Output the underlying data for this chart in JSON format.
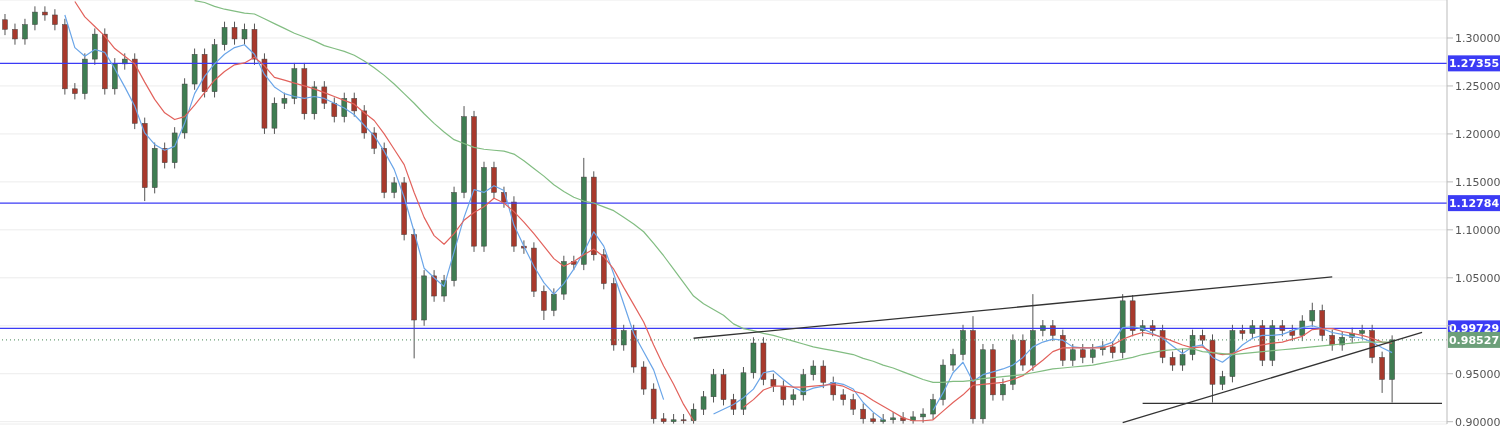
{
  "chart_data": {
    "type": "candlestick",
    "categories": [
      null,
      null,
      null,
      null,
      null,
      null,
      null,
      null,
      null,
      null,
      null,
      null,
      null,
      null,
      null,
      null,
      null,
      null,
      null,
      null,
      null,
      null,
      null,
      null,
      null,
      null,
      null,
      null,
      null,
      null,
      null,
      null,
      null,
      null,
      null,
      null,
      null,
      null,
      null,
      null,
      null,
      null,
      null,
      null,
      null,
      null,
      null,
      null,
      null,
      null,
      null,
      null,
      null,
      null,
      null,
      null,
      null,
      null,
      null,
      null,
      null,
      null,
      null,
      null,
      null,
      null,
      null,
      null,
      null,
      null,
      null,
      null,
      null,
      null,
      null,
      null,
      null,
      null,
      null,
      null,
      null,
      null,
      null,
      null,
      null,
      null,
      null,
      null,
      null,
      null,
      null,
      null,
      null,
      null,
      null,
      null,
      null,
      null,
      null,
      null,
      null,
      null,
      null,
      null,
      null,
      null,
      null,
      null,
      null,
      null,
      null,
      null,
      null,
      null,
      null,
      null,
      null,
      null,
      null,
      null,
      null,
      null,
      null,
      null,
      null,
      null,
      null,
      null,
      null,
      null,
      null,
      null,
      null,
      null,
      null,
      null,
      null,
      null,
      null,
      null,
      null,
      null,
      null,
      null,
      null
    ],
    "ohlc": [
      [
        1.319,
        1.325,
        1.303,
        1.309
      ],
      [
        1.309,
        1.315,
        1.293,
        1.299
      ],
      [
        1.299,
        1.32,
        1.293,
        1.314
      ],
      [
        1.314,
        1.333,
        1.308,
        1.327
      ],
      [
        1.327,
        1.333,
        1.318,
        1.324
      ],
      [
        1.324,
        1.33,
        1.308,
        1.314
      ],
      [
        1.314,
        1.32,
        1.241,
        1.247
      ],
      [
        1.247,
        1.253,
        1.236,
        1.242
      ],
      [
        1.242,
        1.284,
        1.236,
        1.278
      ],
      [
        1.278,
        1.31,
        1.272,
        1.304
      ],
      [
        1.304,
        1.31,
        1.241,
        1.247
      ],
      [
        1.247,
        1.279,
        1.241,
        1.273
      ],
      [
        1.273,
        1.284,
        1.267,
        1.278
      ],
      [
        1.278,
        1.284,
        1.205,
        1.211
      ],
      [
        1.211,
        1.217,
        1.13,
        1.144
      ],
      [
        1.144,
        1.191,
        1.138,
        1.185
      ],
      [
        1.185,
        1.191,
        1.164,
        1.17
      ],
      [
        1.17,
        1.207,
        1.164,
        1.201
      ],
      [
        1.201,
        1.258,
        1.195,
        1.252
      ],
      [
        1.252,
        1.289,
        1.246,
        1.283
      ],
      [
        1.283,
        1.289,
        1.238,
        1.244
      ],
      [
        1.244,
        1.299,
        1.238,
        1.293
      ],
      [
        1.293,
        1.317,
        1.287,
        1.311
      ],
      [
        1.311,
        1.317,
        1.293,
        1.299
      ],
      [
        1.299,
        1.315,
        1.293,
        1.309
      ],
      [
        1.309,
        1.315,
        1.272,
        1.278
      ],
      [
        1.278,
        1.284,
        1.2,
        1.206
      ],
      [
        1.206,
        1.238,
        1.2,
        1.232
      ],
      [
        1.232,
        1.243,
        1.226,
        1.237
      ],
      [
        1.237,
        1.274,
        1.231,
        1.268
      ],
      [
        1.268,
        1.274,
        1.215,
        1.221
      ],
      [
        1.221,
        1.255,
        1.215,
        1.249
      ],
      [
        1.249,
        1.255,
        1.226,
        1.232
      ],
      [
        1.232,
        1.238,
        1.212,
        1.218
      ],
      [
        1.218,
        1.243,
        1.212,
        1.237
      ],
      [
        1.237,
        1.243,
        1.218,
        1.224
      ],
      [
        1.224,
        1.23,
        1.195,
        1.201
      ],
      [
        1.201,
        1.207,
        1.179,
        1.185
      ],
      [
        1.185,
        1.191,
        1.133,
        1.139
      ],
      [
        1.139,
        1.155,
        1.133,
        1.149
      ],
      [
        1.149,
        1.155,
        1.089,
        1.095
      ],
      [
        1.095,
        1.101,
        0.966,
        1.006
      ],
      [
        1.006,
        1.058,
        1.0,
        1.052
      ],
      [
        1.052,
        1.058,
        1.025,
        1.031
      ],
      [
        1.031,
        1.053,
        1.025,
        1.047
      ],
      [
        1.047,
        1.145,
        1.041,
        1.139
      ],
      [
        1.139,
        1.229,
        1.133,
        1.218
      ],
      [
        1.218,
        1.224,
        1.077,
        1.083
      ],
      [
        1.083,
        1.171,
        1.077,
        1.165
      ],
      [
        1.165,
        1.171,
        1.133,
        1.139
      ],
      [
        1.139,
        1.145,
        1.123,
        1.129
      ],
      [
        1.129,
        1.135,
        1.077,
        1.083
      ],
      [
        1.083,
        1.089,
        1.075,
        1.081
      ],
      [
        1.081,
        1.087,
        1.03,
        1.036
      ],
      [
        1.036,
        1.042,
        1.006,
        1.016
      ],
      [
        1.016,
        1.039,
        1.01,
        1.033
      ],
      [
        1.033,
        1.073,
        1.027,
        1.067
      ],
      [
        1.067,
        1.073,
        1.058,
        1.064
      ],
      [
        1.064,
        1.175,
        1.058,
        1.155
      ],
      [
        1.155,
        1.161,
        1.068,
        1.074
      ],
      [
        1.074,
        1.08,
        1.038,
        1.044
      ],
      [
        1.044,
        1.05,
        0.974,
        0.98
      ],
      [
        0.98,
        1.001,
        0.974,
        0.995
      ],
      [
        0.995,
        1.001,
        0.951,
        0.957
      ],
      [
        0.957,
        0.963,
        0.928,
        0.934
      ],
      [
        0.934,
        0.94,
        0.898,
        0.903
      ],
      [
        0.903,
        0.909,
        0.898,
        0.9
      ],
      [
        0.9,
        0.908,
        0.898,
        0.902
      ],
      [
        0.902,
        0.908,
        0.898,
        0.901
      ],
      [
        0.901,
        0.919,
        0.898,
        0.913
      ],
      [
        0.913,
        0.932,
        0.907,
        0.926
      ],
      [
        0.926,
        0.955,
        0.92,
        0.949
      ],
      [
        0.949,
        0.955,
        0.917,
        0.923
      ],
      [
        0.923,
        0.929,
        0.907,
        0.913
      ],
      [
        0.913,
        0.957,
        0.907,
        0.951
      ],
      [
        0.951,
        0.988,
        0.945,
        0.982
      ],
      [
        0.982,
        0.988,
        0.938,
        0.944
      ],
      [
        0.944,
        0.95,
        0.931,
        0.937
      ],
      [
        0.937,
        0.943,
        0.917,
        0.923
      ],
      [
        0.923,
        0.934,
        0.917,
        0.928
      ],
      [
        0.928,
        0.955,
        0.922,
        0.949
      ],
      [
        0.949,
        0.964,
        0.943,
        0.958
      ],
      [
        0.958,
        0.964,
        0.935,
        0.941
      ],
      [
        0.941,
        0.947,
        0.922,
        0.928
      ],
      [
        0.928,
        0.934,
        0.917,
        0.923
      ],
      [
        0.923,
        0.929,
        0.907,
        0.913
      ],
      [
        0.913,
        0.919,
        0.898,
        0.903
      ],
      [
        0.903,
        0.909,
        0.898,
        0.9
      ],
      [
        0.9,
        0.908,
        0.898,
        0.902
      ],
      [
        0.902,
        0.91,
        0.898,
        0.904
      ],
      [
        0.904,
        0.91,
        0.898,
        0.901
      ],
      [
        0.901,
        0.911,
        0.898,
        0.905
      ],
      [
        0.905,
        0.914,
        0.899,
        0.908
      ],
      [
        0.908,
        0.929,
        0.902,
        0.923
      ],
      [
        0.923,
        0.965,
        0.917,
        0.959
      ],
      [
        0.959,
        0.976,
        0.953,
        0.97
      ],
      [
        0.97,
        1.001,
        0.964,
        0.995
      ],
      [
        0.995,
        1.01,
        0.898,
        0.903
      ],
      [
        0.903,
        0.981,
        0.898,
        0.975
      ],
      [
        0.975,
        0.981,
        0.922,
        0.928
      ],
      [
        0.928,
        0.945,
        0.922,
        0.939
      ],
      [
        0.939,
        0.991,
        0.933,
        0.985
      ],
      [
        0.985,
        0.991,
        0.953,
        0.959
      ],
      [
        0.959,
        1.033,
        0.953,
        0.995
      ],
      [
        0.995,
        1.006,
        0.989,
        1.0
      ],
      [
        1.0,
        1.006,
        0.984,
        0.99
      ],
      [
        0.99,
        0.996,
        0.958,
        0.964
      ],
      [
        0.964,
        0.981,
        0.958,
        0.975
      ],
      [
        0.975,
        0.981,
        0.961,
        0.967
      ],
      [
        0.967,
        0.981,
        0.961,
        0.975
      ],
      [
        0.975,
        0.984,
        0.969,
        0.978
      ],
      [
        0.978,
        0.984,
        0.966,
        0.972
      ],
      [
        0.972,
        1.033,
        0.966,
        1.026
      ],
      [
        1.026,
        1.032,
        0.989,
        0.995
      ],
      [
        0.995,
        1.006,
        0.989,
        1.0
      ],
      [
        1.0,
        1.006,
        0.989,
        0.995
      ],
      [
        0.995,
        1.001,
        0.961,
        0.967
      ],
      [
        0.967,
        0.973,
        0.953,
        0.959
      ],
      [
        0.959,
        0.976,
        0.953,
        0.97
      ],
      [
        0.97,
        0.996,
        0.964,
        0.99
      ],
      [
        0.99,
        0.996,
        0.979,
        0.985
      ],
      [
        0.985,
        0.991,
        0.92,
        0.939
      ],
      [
        0.939,
        0.953,
        0.933,
        0.947
      ],
      [
        0.947,
        1.001,
        0.941,
        0.995
      ],
      [
        0.995,
        1.001,
        0.986,
        0.992
      ],
      [
        0.992,
        1.006,
        0.986,
        1.0
      ],
      [
        1.0,
        1.006,
        0.958,
        0.964
      ],
      [
        0.964,
        1.006,
        0.958,
        1.0
      ],
      [
        1.0,
        1.006,
        0.989,
        0.995
      ],
      [
        0.995,
        1.001,
        0.984,
        0.99
      ],
      [
        0.99,
        1.011,
        0.984,
        1.005
      ],
      [
        1.005,
        1.024,
        0.999,
        1.016
      ],
      [
        1.016,
        1.022,
        0.984,
        0.99
      ],
      [
        0.99,
        0.996,
        0.974,
        0.98
      ],
      [
        0.98,
        0.994,
        0.974,
        0.988
      ],
      [
        0.988,
        0.998,
        0.982,
        0.992
      ],
      [
        0.992,
        1.001,
        0.986,
        0.995
      ],
      [
        0.995,
        1.001,
        0.961,
        0.967
      ],
      [
        0.967,
        0.973,
        0.93,
        0.944
      ],
      [
        0.944,
        0.99,
        0.92,
        0.98527
      ],
      null,
      null,
      null,
      null,
      null
    ],
    "series": [
      {
        "type": "line",
        "color": "#6aa5e8",
        "values": [
          null,
          null,
          null,
          null,
          null,
          null,
          1.324,
          1.29,
          1.281,
          1.288,
          1.285,
          1.268,
          1.249,
          1.229,
          1.201,
          1.189,
          1.183,
          1.187,
          1.211,
          1.242,
          1.26,
          1.273,
          1.283,
          1.29,
          1.293,
          1.283,
          1.262,
          1.249,
          1.242,
          1.239,
          1.237,
          1.239,
          1.237,
          1.232,
          1.227,
          1.22,
          1.209,
          1.198,
          1.182,
          1.163,
          1.134,
          1.098,
          1.06,
          1.05,
          1.041,
          1.077,
          1.113,
          1.142,
          1.139,
          1.146,
          1.141,
          1.105,
          1.083,
          1.062,
          1.045,
          1.033,
          1.044,
          1.059,
          1.077,
          1.098,
          1.083,
          1.054,
          1.023,
          0.992,
          0.973,
          0.954,
          0.923,
          null,
          null,
          null,
          null,
          0.908,
          0.913,
          0.918,
          0.925,
          0.934,
          0.951,
          0.953,
          0.944,
          0.936,
          0.931,
          0.935,
          0.937,
          0.941,
          0.939,
          0.934,
          0.92,
          0.91,
          0.902,
          null,
          null,
          null,
          null,
          0.912,
          0.93,
          0.951,
          0.962,
          0.942,
          0.949,
          0.952,
          0.955,
          0.959,
          0.967,
          0.978,
          0.983,
          0.986,
          0.985,
          0.978,
          0.977,
          0.977,
          0.979,
          0.983,
          0.998,
          0.999,
          0.997,
          0.992,
          0.987,
          0.979,
          0.971,
          0.978,
          0.98,
          0.967,
          0.962,
          0.97,
          0.98,
          0.987,
          0.99,
          0.99,
          0.991,
          0.995,
          0.998,
          1.0,
          0.997,
          0.993,
          0.991,
          0.989,
          0.987,
          0.983,
          0.977,
          0.972,
          null,
          null,
          null,
          null,
          null
        ]
      },
      {
        "type": "line",
        "color": "#e2625c",
        "values": [
          null,
          null,
          null,
          null,
          null,
          null,
          null,
          1.338,
          1.322,
          1.312,
          1.302,
          1.289,
          1.281,
          1.273,
          1.254,
          1.236,
          1.222,
          1.215,
          1.218,
          1.23,
          1.243,
          1.256,
          1.265,
          1.272,
          1.274,
          1.28,
          1.271,
          1.259,
          1.256,
          1.253,
          1.25,
          1.247,
          1.243,
          1.239,
          1.235,
          1.231,
          1.222,
          1.214,
          1.2,
          1.184,
          1.168,
          1.139,
          1.113,
          1.094,
          1.085,
          1.096,
          1.11,
          1.118,
          1.124,
          1.133,
          1.128,
          1.119,
          1.108,
          1.096,
          1.083,
          1.07,
          1.062,
          1.067,
          1.074,
          1.08,
          1.072,
          1.059,
          1.04,
          1.022,
          1.004,
          0.98,
          0.958,
          0.939,
          0.918,
          0.901,
          null,
          null,
          null,
          null,
          0.915,
          0.923,
          0.933,
          0.937,
          0.937,
          0.936,
          0.936,
          0.937,
          0.938,
          0.939,
          0.937,
          0.932,
          0.929,
          0.922,
          0.916,
          0.91,
          0.904,
          0.901,
          0.901,
          0.902,
          0.911,
          0.92,
          0.928,
          0.938,
          0.939,
          0.94,
          0.941,
          0.944,
          0.948,
          0.956,
          0.964,
          0.973,
          0.977,
          0.977,
          0.977,
          0.977,
          0.977,
          0.98,
          0.986,
          0.99,
          0.993,
          0.991,
          0.988,
          0.984,
          0.98,
          0.977,
          0.978,
          0.972,
          0.97,
          0.971,
          0.975,
          0.978,
          0.98,
          0.982,
          0.983,
          0.986,
          0.989,
          0.996,
          0.997,
          0.997,
          0.994,
          0.992,
          0.99,
          0.987,
          0.983,
          0.982,
          null,
          null,
          null,
          null,
          null
        ]
      },
      {
        "type": "line",
        "color": "#82bd82",
        "values": [
          null,
          null,
          null,
          null,
          null,
          null,
          null,
          null,
          null,
          null,
          null,
          null,
          null,
          null,
          null,
          null,
          null,
          null,
          null,
          1.339,
          1.337,
          1.333,
          1.33,
          1.328,
          1.326,
          1.325,
          1.32,
          1.315,
          1.31,
          1.305,
          1.301,
          1.297,
          1.292,
          1.289,
          1.286,
          1.282,
          1.276,
          1.269,
          1.261,
          1.252,
          1.242,
          1.232,
          1.221,
          1.211,
          1.202,
          1.194,
          1.19,
          1.186,
          1.184,
          1.183,
          1.182,
          1.179,
          1.172,
          1.164,
          1.156,
          1.147,
          1.14,
          1.134,
          1.13,
          1.128,
          1.124,
          1.12,
          1.113,
          1.106,
          1.098,
          1.086,
          1.073,
          1.059,
          1.045,
          1.031,
          1.023,
          1.017,
          1.011,
          1.002,
          0.997,
          0.995,
          0.992,
          0.99,
          0.987,
          0.984,
          0.981,
          0.978,
          0.976,
          0.974,
          0.972,
          0.97,
          0.966,
          0.963,
          0.959,
          0.956,
          0.952,
          0.948,
          0.944,
          0.941,
          0.941,
          0.942,
          0.942,
          0.943,
          0.945,
          0.946,
          0.947,
          0.948,
          0.949,
          0.951,
          0.953,
          0.955,
          0.956,
          0.957,
          0.958,
          0.959,
          0.961,
          0.963,
          0.965,
          0.967,
          0.97,
          0.972,
          0.974,
          0.975,
          0.976,
          0.976,
          0.973,
          0.972,
          0.971,
          0.97,
          0.971,
          0.972,
          0.973,
          0.974,
          0.975,
          0.976,
          0.977,
          0.978,
          0.979,
          0.98,
          0.981,
          0.982,
          0.983,
          0.983,
          0.983,
          0.983,
          null,
          null,
          null,
          null,
          null
        ]
      },
      {
        "type": "line",
        "color": "#333333",
        "values": [
          null,
          null,
          null,
          null,
          null,
          null,
          null,
          null,
          null,
          null,
          null,
          null,
          null,
          null,
          null,
          null,
          null,
          null,
          null,
          null,
          null,
          null,
          null,
          null,
          null,
          null,
          null,
          null,
          null,
          null,
          null,
          null,
          null,
          null,
          null,
          null,
          null,
          null,
          null,
          null,
          null,
          null,
          null,
          null,
          null,
          null,
          null,
          null,
          null,
          null,
          null,
          null,
          null,
          null,
          null,
          null,
          null,
          null,
          null,
          null,
          null,
          null,
          null,
          null,
          null,
          null,
          null,
          null,
          null,
          0.987,
          null,
          null,
          null,
          null,
          null,
          null,
          null,
          null,
          null,
          null,
          null,
          null,
          null,
          null,
          null,
          null,
          null,
          null,
          null,
          null,
          null,
          null,
          null,
          null,
          null,
          null,
          null,
          null,
          null,
          null,
          null,
          null,
          null,
          null,
          null,
          null,
          null,
          null,
          null,
          null,
          null,
          null,
          null,
          null,
          null,
          null,
          null,
          null,
          null,
          null,
          null,
          null,
          null,
          null,
          null,
          null,
          null,
          null,
          null,
          null,
          null,
          null,
          null,
          1.051,
          null,
          null,
          null,
          null,
          null,
          null,
          null,
          null,
          null,
          null,
          null
        ]
      },
      {
        "type": "line",
        "color": "#333333",
        "values": [
          null,
          null,
          null,
          null,
          null,
          null,
          null,
          null,
          null,
          null,
          null,
          null,
          null,
          null,
          null,
          null,
          null,
          null,
          null,
          null,
          null,
          null,
          null,
          null,
          null,
          null,
          null,
          null,
          null,
          null,
          null,
          null,
          null,
          null,
          null,
          null,
          null,
          null,
          null,
          null,
          null,
          null,
          null,
          null,
          null,
          null,
          null,
          null,
          null,
          null,
          null,
          null,
          null,
          null,
          null,
          null,
          null,
          null,
          null,
          null,
          null,
          null,
          null,
          null,
          null,
          null,
          null,
          null,
          null,
          null,
          null,
          null,
          null,
          null,
          null,
          null,
          null,
          null,
          null,
          null,
          null,
          null,
          null,
          null,
          null,
          null,
          null,
          null,
          null,
          null,
          null,
          null,
          null,
          null,
          null,
          null,
          null,
          null,
          null,
          null,
          null,
          null,
          null,
          null,
          null,
          null,
          null,
          null,
          null,
          null,
          null,
          null,
          0.899,
          null,
          null,
          null,
          null,
          null,
          null,
          null,
          null,
          null,
          null,
          null,
          null,
          null,
          null,
          null,
          null,
          null,
          null,
          null,
          null,
          null,
          null,
          null,
          null,
          null,
          null,
          null,
          null,
          null,
          0.993,
          null,
          null
        ]
      },
      {
        "type": "line",
        "color": "#333333",
        "values": [
          null,
          null,
          null,
          null,
          null,
          null,
          null,
          null,
          null,
          null,
          null,
          null,
          null,
          null,
          null,
          null,
          null,
          null,
          null,
          null,
          null,
          null,
          null,
          null,
          null,
          null,
          null,
          null,
          null,
          null,
          null,
          null,
          null,
          null,
          null,
          null,
          null,
          null,
          null,
          null,
          null,
          null,
          null,
          null,
          null,
          null,
          null,
          null,
          null,
          null,
          null,
          null,
          null,
          null,
          null,
          null,
          null,
          null,
          null,
          null,
          null,
          null,
          null,
          null,
          null,
          null,
          null,
          null,
          null,
          null,
          null,
          null,
          null,
          null,
          null,
          null,
          null,
          null,
          null,
          null,
          null,
          null,
          null,
          null,
          null,
          null,
          null,
          null,
          null,
          null,
          null,
          null,
          null,
          null,
          null,
          null,
          null,
          null,
          null,
          null,
          null,
          null,
          null,
          null,
          null,
          null,
          null,
          null,
          null,
          null,
          null,
          null,
          null,
          null,
          0.919,
          null,
          null,
          null,
          null,
          null,
          null,
          null,
          null,
          null,
          null,
          null,
          null,
          null,
          null,
          null,
          null,
          null,
          null,
          null,
          null,
          null,
          null,
          null,
          null,
          null,
          null,
          null,
          null,
          null,
          0.919
        ]
      }
    ],
    "ref_lines": [
      {
        "axis": "y",
        "value": 1.27355,
        "label": "1.27355",
        "color": "#3b3bf5"
      },
      {
        "axis": "y",
        "value": 1.12784,
        "label": "1.12784",
        "color": "#3b3bf5"
      },
      {
        "axis": "y",
        "value": 0.99729,
        "label": "0.99729",
        "color": "#3b3bf5"
      },
      {
        "axis": "y",
        "value": 0.98527,
        "label": "0.98527",
        "color": "#6c9f79",
        "line_style": "dotted"
      }
    ],
    "ylim": [
      0.8976,
      1.3396
    ],
    "yticks": [
      {
        "value": 0.9,
        "label": "0.90000"
      },
      {
        "value": 0.95,
        "label": "0.95000"
      },
      {
        "value": 1.0,
        "label": null
      },
      {
        "value": 1.05,
        "label": "1.05000"
      },
      {
        "value": 1.1,
        "label": "1.10000"
      },
      {
        "value": 1.15,
        "label": "1.15000"
      },
      {
        "value": 1.2,
        "label": "1.20000"
      },
      {
        "value": 1.25,
        "label": "1.25000"
      },
      {
        "value": 1.3,
        "label": "1.30000"
      }
    ],
    "grid": "y",
    "tick_labels": "y"
  }
}
